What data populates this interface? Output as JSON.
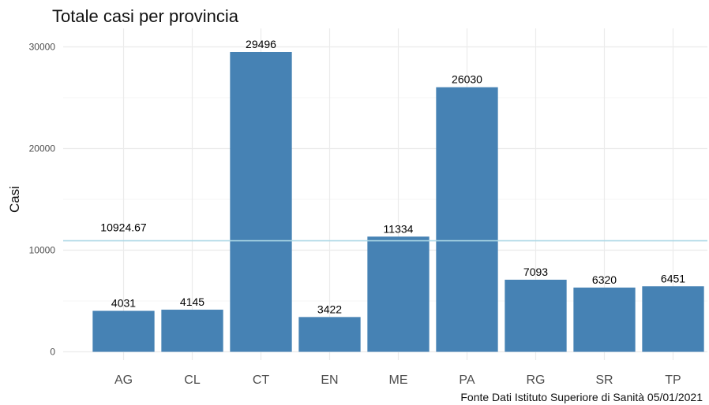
{
  "chart_data": {
    "type": "bar",
    "title": "Totale casi per provincia",
    "xlabel": "",
    "ylabel": "Casi",
    "caption": "Fonte Dati Istituto Superiore di Sanità 05/01/2021",
    "categories": [
      "AG",
      "CL",
      "CT",
      "EN",
      "ME",
      "PA",
      "RG",
      "SR",
      "TP"
    ],
    "values": [
      4031,
      4145,
      29496,
      3422,
      11334,
      26030,
      7093,
      6320,
      6451
    ],
    "value_labels": [
      "4031",
      "4145",
      "29496",
      "3422",
      "11334",
      "26030",
      "7093",
      "6320",
      "6451"
    ],
    "ylim": [
      0,
      30000
    ],
    "yticks": [
      0,
      10000,
      20000,
      30000
    ],
    "ytick_labels": [
      "0",
      "10000",
      "20000",
      "30000"
    ],
    "grid": true,
    "legend": "none",
    "reference_line": {
      "value": 10924.67,
      "label": "10924.67"
    },
    "colors": {
      "bar": "#4682b4",
      "reference_line": "#add8e6",
      "grid_major": "#ebebeb",
      "grid_minor": "#f5f5f5"
    }
  }
}
